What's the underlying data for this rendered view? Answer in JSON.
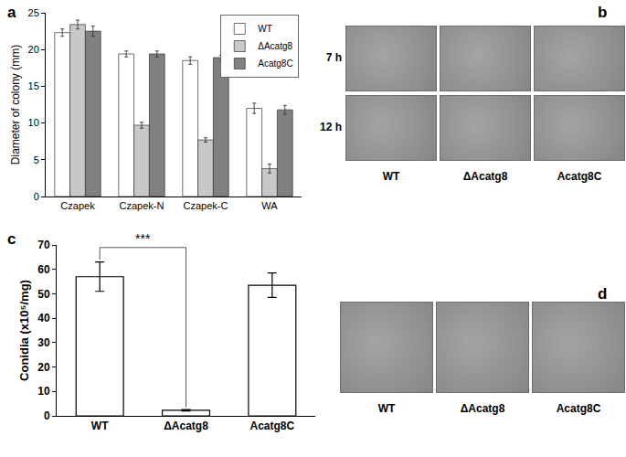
{
  "chart_data": [
    {
      "type": "bar",
      "panel": "a",
      "ylabel": "Diameter of colony (mm)",
      "categories": [
        "Czapek",
        "Czapek-N",
        "Czapek-C",
        "WA"
      ],
      "series": [
        {
          "name": "WT",
          "color": "#ffffff",
          "values": [
            22.3,
            19.4,
            18.5,
            12.0
          ],
          "errors": [
            0.5,
            0.4,
            0.5,
            0.7
          ]
        },
        {
          "name": "ΔAcatg8",
          "color": "#c8c8c8",
          "values": [
            23.4,
            9.7,
            7.7,
            3.8
          ],
          "errors": [
            0.6,
            0.4,
            0.3,
            0.6
          ]
        },
        {
          "name": "Acatg8C",
          "color": "#808080",
          "values": [
            22.5,
            19.4,
            18.9,
            11.8
          ],
          "errors": [
            0.7,
            0.4,
            0.3,
            0.6
          ]
        }
      ],
      "ylim": [
        0,
        25
      ],
      "yticks": [
        0,
        5,
        10,
        15,
        20,
        25
      ],
      "grid": false,
      "legend": "upper right"
    },
    {
      "type": "bar",
      "panel": "c",
      "ylabel": "Conidia (x10⁵/mg)",
      "categories": [
        "WT",
        "ΔAcatg8",
        "Acatg8C"
      ],
      "values": [
        57,
        2.3,
        53.5
      ],
      "errors": [
        6,
        0.3,
        5
      ],
      "color": "#ffffff",
      "ylim": [
        0,
        70
      ],
      "yticks": [
        0,
        10,
        20,
        30,
        40,
        50,
        60,
        70
      ],
      "grid": false,
      "annotations": [
        {
          "text": "***",
          "from": "WT",
          "to": "ΔAcatg8"
        }
      ]
    }
  ],
  "images": [
    {
      "panel": "b",
      "rows": [
        "7 h",
        "12 h"
      ],
      "columns": [
        "WT",
        "ΔAcatg8",
        "Acatg8C"
      ]
    },
    {
      "panel": "d",
      "columns": [
        "WT",
        "ΔAcatg8",
        "Acatg8C"
      ]
    }
  ]
}
